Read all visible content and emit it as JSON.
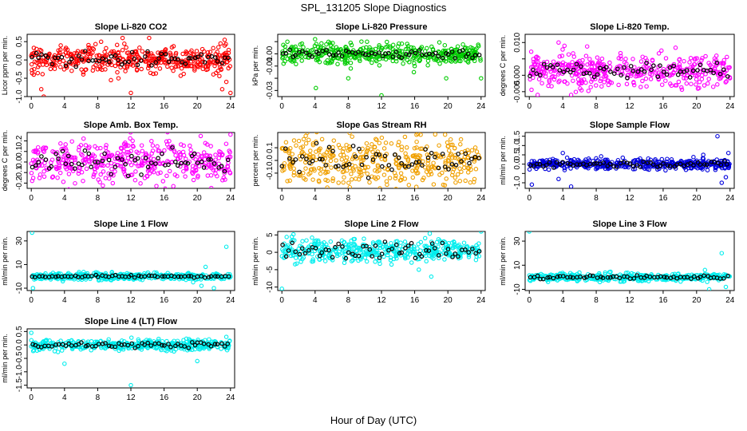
{
  "figure": {
    "title": "SPL_131205  Slope Diagnostics",
    "xlabel": "Hour of Day (UTC)"
  },
  "chart_data": [
    {
      "type": "scatter",
      "title": "Slope Li-820 CO2",
      "ylabel": "Licor ppm per min.",
      "color": "#ff0000",
      "ylim": [
        -1.0,
        0.7
      ],
      "yticks": [
        -1.0,
        -0.5,
        0.0,
        0.5
      ],
      "yticklabels": [
        "-1.0",
        "-0.5",
        "0.0",
        "0.5"
      ],
      "xlim": [
        -0.5,
        24.5
      ],
      "xticks": [
        0,
        4,
        8,
        12,
        16,
        20,
        24
      ],
      "spread": 0.18,
      "black_spread": 0.1,
      "center": 0.02,
      "outliers": [
        [
          0.3,
          -0.4
        ],
        [
          1.2,
          -0.8
        ],
        [
          1.5,
          -1.0
        ],
        [
          9.6,
          -0.55
        ],
        [
          10.5,
          -0.5
        ],
        [
          11.0,
          0.6
        ],
        [
          12.0,
          -0.9
        ],
        [
          14.2,
          0.6
        ],
        [
          22.5,
          -0.3
        ],
        [
          22.8,
          0.45
        ],
        [
          23.0,
          -0.8
        ],
        [
          23.3,
          0.55
        ],
        [
          23.5,
          -0.6
        ],
        [
          24.0,
          -0.9
        ]
      ]
    },
    {
      "type": "scatter",
      "title": "Slope Li-820 Pressure",
      "ylabel": "kPa per min.",
      "color": "#00cc00",
      "ylim": [
        -0.035,
        0.016
      ],
      "yticks": [
        -0.03,
        -0.02,
        -0.01,
        0.0,
        0.01
      ],
      "yticklabels": [
        "-0.03",
        "",
        "-0.01",
        "0.00",
        ""
      ],
      "xlim": [
        -0.5,
        24.5
      ],
      "xticks": [
        0,
        4,
        8,
        12,
        16,
        20,
        24
      ],
      "spread": 0.004,
      "black_spread": 0.002,
      "center": 0.0,
      "outliers": [
        [
          0.2,
          -0.008
        ],
        [
          4.0,
          0.012
        ],
        [
          4.1,
          -0.028
        ],
        [
          8.0,
          -0.02
        ],
        [
          8.3,
          -0.012
        ],
        [
          12.0,
          -0.034
        ],
        [
          15.9,
          -0.015
        ],
        [
          16.0,
          -0.01
        ],
        [
          19.8,
          -0.02
        ],
        [
          24.0,
          -0.02
        ]
      ]
    },
    {
      "type": "scatter",
      "title": "Slope Li-820 Temp.",
      "ylabel": "degrees C per min.",
      "color": "#ff00ff",
      "ylim": [
        -0.0065,
        0.0125
      ],
      "yticks": [
        -0.005,
        0.0,
        0.005,
        0.01
      ],
      "yticklabels": [
        "-0.005",
        "0.000",
        "",
        "0.010"
      ],
      "xlim": [
        -0.5,
        24.5
      ],
      "xticks": [
        0,
        4,
        8,
        12,
        16,
        20,
        24
      ],
      "spread": 0.0025,
      "black_spread": 0.0012,
      "center": 0.0015,
      "outliers": [
        [
          3.5,
          0.01
        ],
        [
          4.2,
          0.009
        ],
        [
          1.0,
          -0.006
        ],
        [
          5.0,
          -0.006
        ]
      ]
    },
    {
      "type": "scatter",
      "title": "Slope Amb. Box Temp.",
      "ylabel": "degrees C per min.",
      "color": "#ff00ff",
      "ylim": [
        -0.25,
        0.28
      ],
      "yticks": [
        -0.2,
        -0.1,
        0.0,
        0.1,
        0.2
      ],
      "yticklabels": [
        "-0.2",
        "-0.1",
        "0.0",
        "0.1",
        "0.2"
      ],
      "xlim": [
        -0.5,
        24.5
      ],
      "xticks": [
        0,
        4,
        8,
        12,
        16,
        20,
        24
      ],
      "spread": 0.1,
      "black_spread": 0.06,
      "center": 0.0,
      "outliers": [
        [
          24.0,
          0.26
        ]
      ]
    },
    {
      "type": "scatter",
      "title": "Slope Gas Stream RH",
      "ylabel": "percent per min.",
      "color": "#f0a000",
      "ylim": [
        -0.22,
        0.22
      ],
      "yticks": [
        -0.1,
        0.0,
        0.1
      ],
      "yticklabels": [
        "-0.1",
        "0.0",
        "0.1"
      ],
      "xlim": [
        -0.5,
        24.5
      ],
      "xticks": [
        0,
        4,
        8,
        12,
        16,
        20,
        24
      ],
      "spread": 0.1,
      "black_spread": 0.06,
      "center": 0.0,
      "outliers": []
    },
    {
      "type": "scatter",
      "title": "Slope Sample Flow",
      "ylabel": "ml/min per min.",
      "color": "#0000dd",
      "ylim": [
        -1.3,
        1.7
      ],
      "yticks": [
        -1.0,
        -0.5,
        0.0,
        0.5,
        1.0,
        1.5
      ],
      "yticklabels": [
        "-1.0",
        "",
        "0.0",
        "0.5",
        "1.0",
        "1.5"
      ],
      "xlim": [
        -0.5,
        24.5
      ],
      "xticks": [
        0,
        4,
        8,
        12,
        16,
        20,
        24
      ],
      "spread": 0.14,
      "black_spread": 0.07,
      "center": 0.0,
      "outliers": [
        [
          0.3,
          -1.1
        ],
        [
          3.5,
          -0.8
        ],
        [
          4.0,
          0.6
        ],
        [
          5.0,
          -1.2
        ],
        [
          20.8,
          0.5
        ],
        [
          22.5,
          1.5
        ],
        [
          23.0,
          -1.0
        ],
        [
          23.5,
          -0.7
        ],
        [
          23.8,
          0.6
        ]
      ]
    },
    {
      "type": "scatter",
      "title": "Slope Line 1 Flow",
      "ylabel": "ml/min per min.",
      "color": "#00eeee",
      "ylim": [
        -12,
        38
      ],
      "yticks": [
        -10,
        10,
        30
      ],
      "yticklabels": [
        "-10",
        "10",
        "30"
      ],
      "xlim": [
        -0.5,
        24.5
      ],
      "xticks": [
        0,
        4,
        8,
        12,
        16,
        20,
        24
      ],
      "spread": 1.5,
      "black_spread": 0.5,
      "center": 0.0,
      "outliers": [
        [
          0.1,
          37
        ],
        [
          0.2,
          -10
        ],
        [
          19.5,
          -5
        ],
        [
          20.5,
          -8
        ],
        [
          21.0,
          8
        ],
        [
          22.0,
          -10
        ],
        [
          23.5,
          25
        ]
      ]
    },
    {
      "type": "scatter",
      "title": "Slope Line 2 Flow",
      "ylabel": "ml/min per min.",
      "color": "#00eeee",
      "ylim": [
        -11,
        6
      ],
      "yticks": [
        -10,
        -5,
        0,
        5
      ],
      "yticklabels": [
        "-10",
        "-5",
        "0",
        "5"
      ],
      "xlim": [
        -0.5,
        24.5
      ],
      "xticks": [
        0,
        4,
        8,
        12,
        16,
        20,
        24
      ],
      "spread": 1.6,
      "black_spread": 1.3,
      "center": 0.5,
      "outliers": [
        [
          0.0,
          -10.5
        ],
        [
          1.2,
          4.5
        ],
        [
          16.5,
          -5
        ],
        [
          18.0,
          -7
        ],
        [
          24.0,
          6
        ]
      ]
    },
    {
      "type": "scatter",
      "title": "Slope Line 3 Flow",
      "ylabel": "ml/min per min.",
      "color": "#00eeee",
      "ylim": [
        -11,
        38
      ],
      "yticks": [
        -10,
        10,
        30
      ],
      "yticklabels": [
        "-10",
        "10",
        "30"
      ],
      "xlim": [
        -0.5,
        24.5
      ],
      "xticks": [
        0,
        4,
        8,
        12,
        16,
        20,
        24
      ],
      "spread": 1.6,
      "black_spread": 0.8,
      "center": 0.0,
      "outliers": [
        [
          0.0,
          38
        ],
        [
          21.0,
          6
        ],
        [
          23.0,
          20
        ],
        [
          23.5,
          -8
        ],
        [
          21.5,
          -10
        ]
      ]
    },
    {
      "type": "scatter",
      "title": "Slope Line 4 (LT) Flow",
      "ylabel": "ml/min per min.",
      "color": "#00eeee",
      "ylim": [
        -1.6,
        0.6
      ],
      "yticks": [
        -1.5,
        -1.0,
        -0.5,
        0.0,
        0.5
      ],
      "yticklabels": [
        "-1.5",
        "-1.0",
        "-0.5",
        "0.0",
        "0.5"
      ],
      "xlim": [
        -0.5,
        24.5
      ],
      "xticks": [
        0,
        4,
        8,
        12,
        16,
        20,
        24
      ],
      "spread": 0.1,
      "black_spread": 0.05,
      "center": 0.0,
      "outliers": [
        [
          0.0,
          0.45
        ],
        [
          4.0,
          -0.7
        ],
        [
          12.0,
          -1.5
        ],
        [
          20.0,
          -0.6
        ],
        [
          23.5,
          0.3
        ]
      ]
    }
  ]
}
